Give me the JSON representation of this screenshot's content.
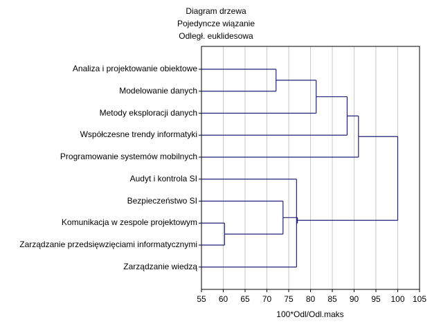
{
  "chart_data": {
    "type": "dendrogram",
    "title": [
      "Diagram drzewa",
      "Pojedyncze wiązanie",
      "Odległ. euklidesowa"
    ],
    "xlabel": "100*Odl/Odl.maks",
    "ylabel": "",
    "xlim": [
      55,
      105
    ],
    "xticks": [
      "55",
      "60",
      "65",
      "70",
      "75",
      "80",
      "85",
      "90",
      "95",
      "100",
      "105"
    ],
    "grid": true,
    "leaves": [
      "Analiza i projektowanie obiektowe",
      "Modelowanie danych",
      "Metody eksploracji danych",
      "Współczesne trendy informatyki",
      "Programowanie systemów mobilnych",
      "Audyt i kontrola SI",
      "Bezpieczeństwo SI",
      "Komunikacja w zespole projektowym",
      "Zarządzanie przedsięwzięciami informatycznymi",
      "Zarządzanie wiedzą"
    ],
    "merges": [
      {
        "id": "A",
        "children": [
          "L7",
          "L8"
        ],
        "height": 60.3
      },
      {
        "id": "B",
        "children": [
          "L6",
          "A"
        ],
        "height": 73.7
      },
      {
        "id": "C",
        "children": [
          "L0",
          "L1"
        ],
        "height": 72.1
      },
      {
        "id": "D",
        "children": [
          "L5",
          "L9"
        ],
        "height": 76.8
      },
      {
        "id": "E",
        "children": [
          "B",
          "D"
        ],
        "height": 77.0
      },
      {
        "id": "F",
        "children": [
          "C",
          "L2"
        ],
        "height": 81.3
      },
      {
        "id": "G",
        "children": [
          "F",
          "L3"
        ],
        "height": 88.4
      },
      {
        "id": "H",
        "children": [
          "G",
          "L4"
        ],
        "height": 91.0
      },
      {
        "id": "I",
        "children": [
          "H",
          "E"
        ],
        "height": 100.0
      }
    ],
    "colors": {
      "line": "#1f1f7a",
      "grid": "#c8c8c8",
      "frame": "#000000"
    }
  }
}
